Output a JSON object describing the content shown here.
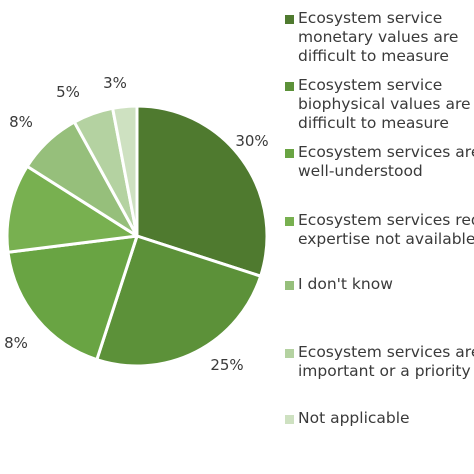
{
  "chart_data": {
    "type": "pie",
    "title": "",
    "slices": [
      {
        "label": "Ecosystem service monetary values are difficult to measure",
        "lines": [
          "Ecosystem service",
          "monetary values are",
          "difficult to measure"
        ],
        "value": 30,
        "value_label": "30%",
        "color": "#4f7a2f"
      },
      {
        "label": "Ecosystem service biophysical values are difficult to measure",
        "lines": [
          "Ecosystem service",
          "biophysical values are",
          "difficult to measure"
        ],
        "value": 25,
        "value_label": "25%",
        "color": "#5c9139"
      },
      {
        "label": "Ecosystem services are well-understood",
        "lines": [
          "Ecosystem services are",
          "well-understood"
        ],
        "value": 18,
        "value_label": "",
        "color": "#69a443"
      },
      {
        "label": "Ecosystem services require expertise not available",
        "lines": [
          "Ecosystem services req",
          "expertise not available"
        ],
        "value": 11,
        "value_label": "",
        "color": "#78b050"
      },
      {
        "label": "I don't know",
        "lines": [
          "I don't know"
        ],
        "value": 8,
        "value_label": "8%",
        "color": "#96bf7b"
      },
      {
        "label": "Ecosystem services are important or a priority",
        "lines": [
          "Ecosystem services are",
          "important or a priority"
        ],
        "value": 5,
        "value_label": "5%",
        "color": "#b4d2a1"
      },
      {
        "label": "Not applicable",
        "lines": [
          "Not applicable"
        ],
        "value": 3,
        "value_label": "3%",
        "color": "#cee1c1"
      }
    ],
    "extra_labels": [
      "8%"
    ],
    "legend_position": "right"
  }
}
